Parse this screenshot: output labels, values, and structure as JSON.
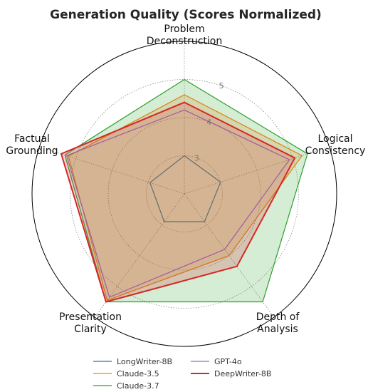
{
  "chart_data": {
    "type": "radar",
    "title": "Generation Quality (Scores Normalized)",
    "axes": [
      "Problem Deconstruction",
      "Logical Consistency",
      "Depth of Analysis",
      "Presentation Clarity",
      "Factual Grounding"
    ],
    "axis_label_lines": [
      [
        "Problem",
        "Deconstruction"
      ],
      [
        "Logical",
        "Consistency"
      ],
      [
        "Depth of",
        "Analysis"
      ],
      [
        "Presentation",
        "Clarity"
      ],
      [
        "Factual",
        "Grounding"
      ]
    ],
    "rlim": [
      2,
      6
    ],
    "rticks": [
      3,
      4,
      5
    ],
    "rtick_labels": [
      "3",
      "4",
      "5"
    ],
    "grid": true,
    "legend": "bottom-center",
    "series": [
      {
        "name": "LongWriter-8B",
        "color": "#1f77b4",
        "fill": false,
        "values": [
          3.0,
          3.0,
          2.9,
          2.9,
          2.95
        ]
      },
      {
        "name": "Claude-3.5",
        "color": "#ff7f0e",
        "fill": true,
        "values": [
          4.6,
          5.25,
          4.0,
          5.45,
          5.2
        ]
      },
      {
        "name": "Claude-3.7",
        "color": "#2ca02c",
        "fill": true,
        "values": [
          5.0,
          5.4,
          5.5,
          5.5,
          5.3
        ]
      },
      {
        "name": "GPT-4o",
        "color": "#9467bd",
        "fill": false,
        "values": [
          4.2,
          4.9,
          3.8,
          5.35,
          5.25
        ]
      },
      {
        "name": "DeepWriter-8B",
        "color": "#d62728",
        "fill": true,
        "values": [
          4.4,
          5.05,
          4.35,
          5.5,
          5.4
        ]
      }
    ]
  }
}
